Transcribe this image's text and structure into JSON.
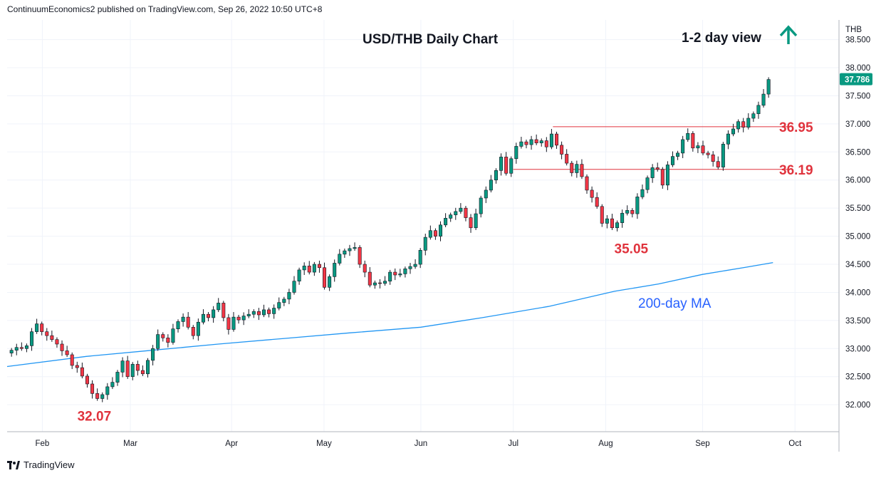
{
  "publisher_line": "ContinuumEconomics2 published on TradingView.com, Sep 26, 2022 10:50 UTC+8",
  "footer": {
    "brand": "TradingView"
  },
  "chart_data": {
    "type": "candlestick",
    "title": "USD/THB Daily Chart",
    "view_label": "1-2 day view",
    "view_direction": "up",
    "currency_label": "THB",
    "last_price_label": "37.786",
    "y_ticks": [
      "38.500",
      "38.000",
      "37.500",
      "37.000",
      "36.500",
      "36.000",
      "35.500",
      "35.000",
      "34.500",
      "34.000",
      "33.500",
      "33.000",
      "32.500",
      "32.000"
    ],
    "ylim": [
      31.52,
      38.85
    ],
    "x_months": [
      {
        "label": "Feb",
        "day": 20
      },
      {
        "label": "Mar",
        "day": 40
      },
      {
        "label": "Apr",
        "day": 63
      },
      {
        "label": "May",
        "day": 84
      },
      {
        "label": "Jun",
        "day": 106
      },
      {
        "label": "Jul",
        "day": 127
      },
      {
        "label": "Aug",
        "day": 148
      },
      {
        "label": "Sep",
        "day": 170
      },
      {
        "label": "Oct",
        "day": 191
      }
    ],
    "x_range_days": [
      12,
      201
    ],
    "horizontal_lines": [
      {
        "value": 36.95,
        "label": "36.95",
        "from_day": 136,
        "to_day": 190
      },
      {
        "value": 36.19,
        "label": "36.19",
        "from_day": 127,
        "to_day": 190
      }
    ],
    "annotations": [
      {
        "text": "32.07",
        "day": 32,
        "value": 32.07
      },
      {
        "text": "35.05",
        "day": 154,
        "value": 35.05
      }
    ],
    "ma_label": "200-day MA",
    "ma_200": [
      [
        12,
        32.68
      ],
      [
        30,
        32.86
      ],
      [
        45,
        32.97
      ],
      [
        60,
        33.08
      ],
      [
        75,
        33.18
      ],
      [
        90,
        33.28
      ],
      [
        106,
        33.38
      ],
      [
        120,
        33.55
      ],
      [
        135,
        33.75
      ],
      [
        150,
        34.02
      ],
      [
        160,
        34.15
      ],
      [
        170,
        34.32
      ],
      [
        180,
        34.45
      ],
      [
        186,
        34.53
      ]
    ],
    "candle_closes": [
      32.97,
      33.02,
      33.0,
      33.05,
      33.3,
      33.44,
      33.3,
      33.23,
      33.16,
      33.08,
      32.96,
      32.89,
      32.7,
      32.66,
      32.51,
      32.37,
      32.2,
      32.11,
      32.18,
      32.32,
      32.4,
      32.58,
      32.78,
      32.5,
      32.72,
      32.61,
      32.55,
      32.79,
      33.0,
      33.25,
      33.19,
      33.11,
      33.35,
      33.48,
      33.56,
      33.38,
      33.23,
      33.47,
      33.61,
      33.55,
      33.69,
      33.81,
      33.55,
      33.34,
      33.56,
      33.51,
      33.58,
      33.61,
      33.66,
      33.6,
      33.69,
      33.62,
      33.72,
      33.82,
      33.88,
      34.0,
      34.2,
      34.4,
      34.47,
      34.36,
      34.5,
      34.44,
      34.09,
      34.28,
      34.52,
      34.68,
      34.74,
      34.78,
      34.8,
      34.5,
      34.36,
      34.13,
      34.17,
      34.16,
      34.2,
      34.36,
      34.31,
      34.33,
      34.42,
      34.46,
      34.5,
      34.75,
      34.98,
      35.1,
      35.0,
      35.2,
      35.32,
      35.38,
      35.44,
      35.5,
      35.33,
      35.15,
      35.4,
      35.68,
      35.82,
      36.0,
      36.17,
      36.41,
      36.12,
      36.38,
      36.6,
      36.68,
      36.63,
      36.72,
      36.66,
      36.7,
      36.59,
      36.82,
      36.62,
      36.46,
      36.3,
      36.13,
      36.28,
      36.06,
      35.82,
      35.69,
      35.53,
      35.23,
      35.31,
      35.15,
      35.24,
      35.41,
      35.46,
      35.4,
      35.7,
      35.83,
      36.04,
      36.22,
      36.19,
      35.91,
      36.27,
      36.42,
      36.48,
      36.72,
      36.83,
      36.57,
      36.61,
      36.48,
      36.45,
      36.33,
      36.23,
      36.64,
      36.82,
      36.91,
      37.04,
      36.94,
      37.1,
      37.18,
      37.33,
      37.53,
      37.79
    ]
  }
}
